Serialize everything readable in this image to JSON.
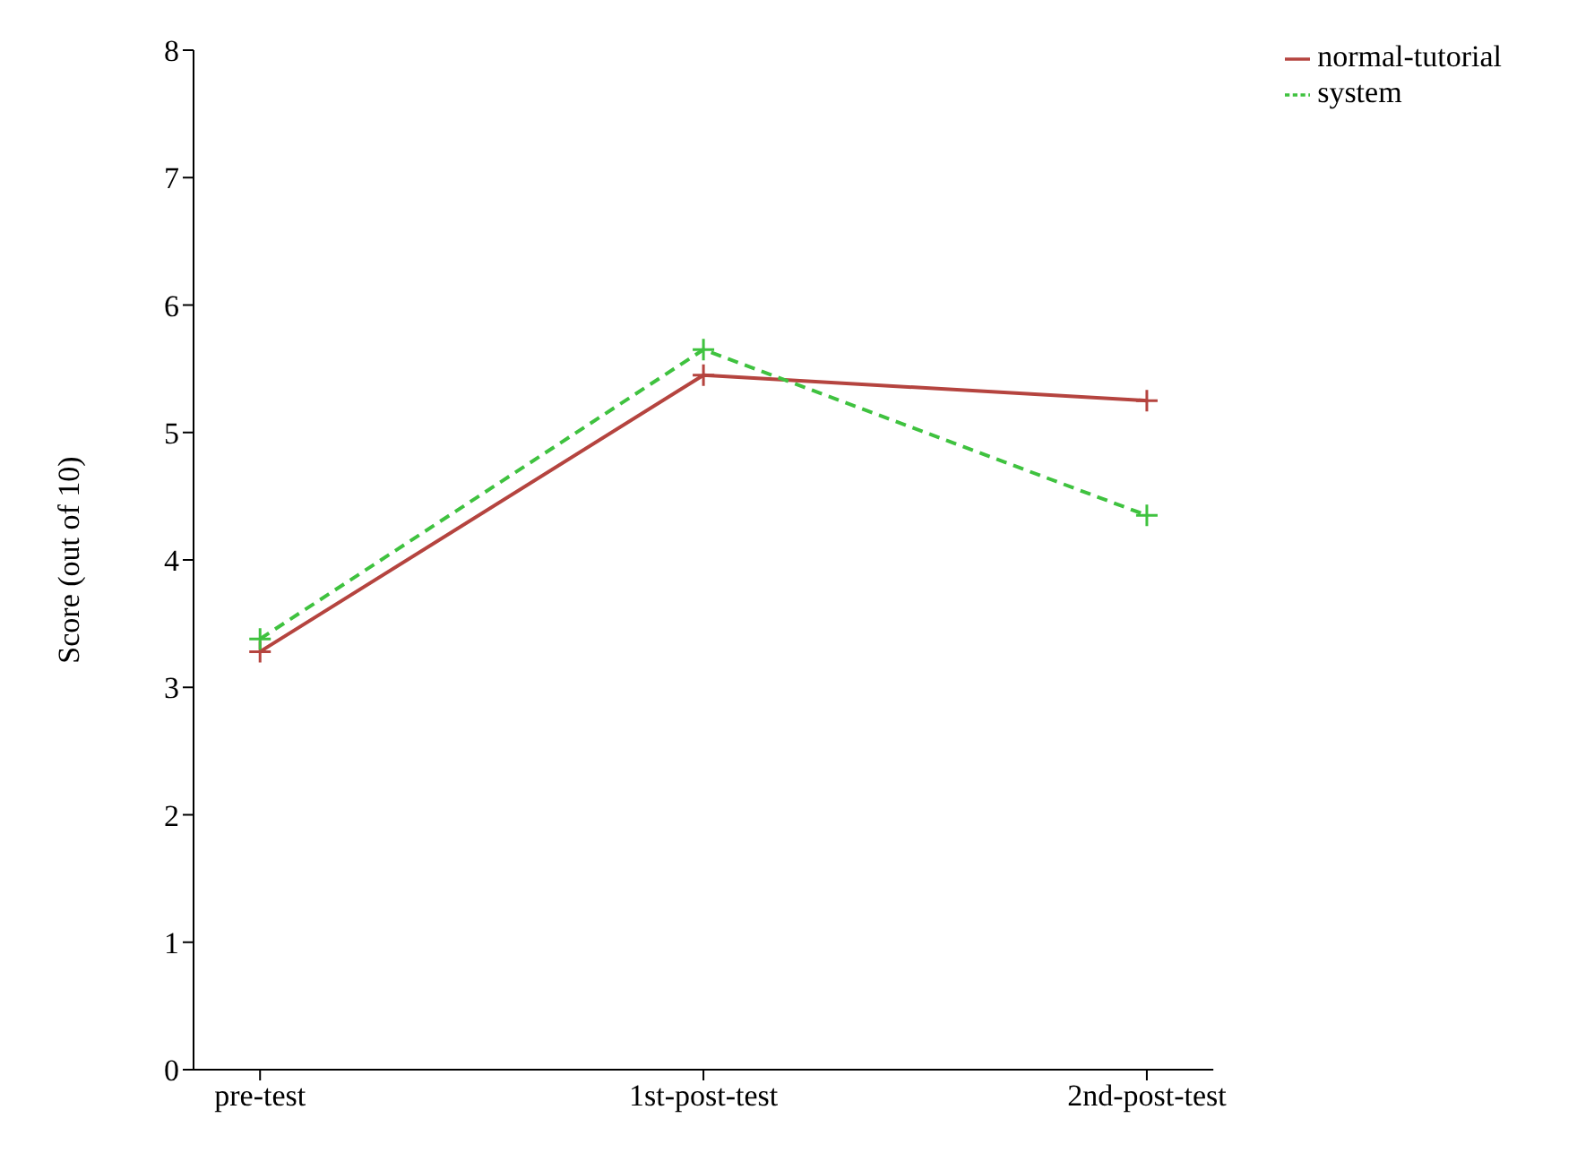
{
  "chart_data": {
    "type": "line",
    "ylabel": "Score (out of 10)",
    "categories": [
      "pre-test",
      "1st-post-test",
      "2nd-post-test"
    ],
    "series": [
      {
        "name": "normal-tutorial",
        "color": "#b5443f",
        "values": [
          3.28,
          5.45,
          5.25
        ],
        "marker": "cross",
        "line_style": "solid"
      },
      {
        "name": "system",
        "color": "#3fc23f",
        "values": [
          3.38,
          5.65,
          4.35
        ],
        "marker": "cross",
        "line_style": "dashed"
      }
    ],
    "ylim": [
      0,
      8
    ],
    "yticks": [
      0,
      1,
      2,
      3,
      4,
      5,
      6,
      7,
      8
    ],
    "grid": false,
    "legend": "top right"
  }
}
